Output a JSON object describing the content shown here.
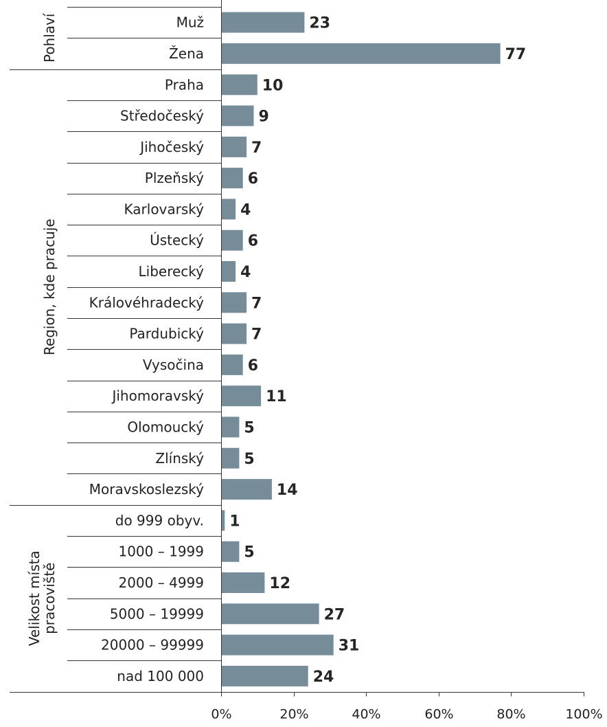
{
  "chart_data": {
    "type": "bar",
    "orientation": "horizontal",
    "bar_color": "#778c99",
    "xlim": [
      0,
      100
    ],
    "x_ticks": [
      "0%",
      "20%",
      "40%",
      "60%",
      "80%",
      "100%"
    ],
    "groups": [
      {
        "label": [
          "Pohlaví"
        ],
        "categories": [
          "Muž",
          "Žena"
        ],
        "values": [
          23,
          77
        ]
      },
      {
        "label": [
          "Region, kde pracuje"
        ],
        "categories": [
          "Praha",
          "Středočeský",
          "Jihočeský",
          "Plzeňský",
          "Karlovarský",
          "Ústecký",
          "Liberecký",
          "Královéhradecký",
          "Pardubický",
          "Vysočina",
          "Jihomoravský",
          "Olomoucký",
          "Zlínský",
          "Moravskoslezský"
        ],
        "values": [
          10,
          9,
          7,
          6,
          4,
          6,
          4,
          7,
          7,
          6,
          11,
          5,
          5,
          14
        ]
      },
      {
        "label": [
          "Velikost místa",
          "pracoviště"
        ],
        "categories": [
          "do 999 obyv.",
          "1000 – 1999",
          "2000 – 4999",
          "5000 – 19999",
          "20000 – 99999",
          "nad 100 000"
        ],
        "values": [
          1,
          5,
          12,
          27,
          31,
          24
        ]
      }
    ]
  }
}
